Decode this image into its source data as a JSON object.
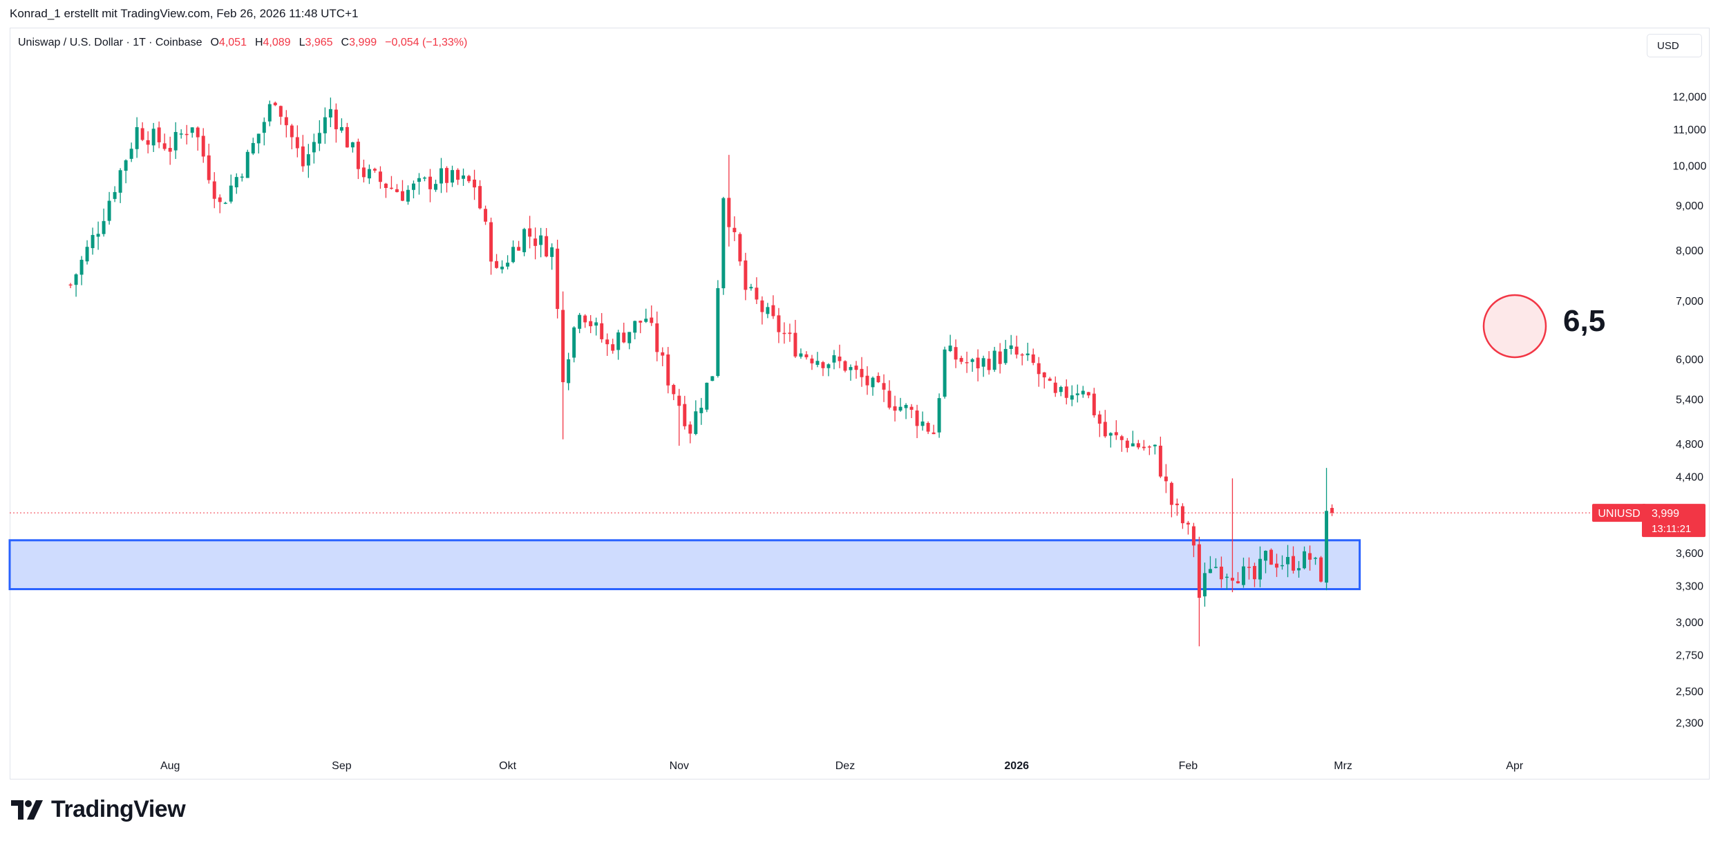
{
  "credit": "Konrad_1 erstellt mit TradingView.com, Feb 26, 2026 11:48 UTC+1",
  "legend": {
    "symbol": "Uniswap / U.S. Dollar · 1T · Coinbase",
    "o_label": "O",
    "o_value": "4,051",
    "h_label": "H",
    "h_value": "4,089",
    "l_label": "L",
    "l_value": "3,965",
    "c_label": "C",
    "c_value": "3,999",
    "change": "−0,054 (−1,33%)"
  },
  "currency_button": "USD",
  "annotation": {
    "value": "6,5",
    "circle_fill": "#fde8e9",
    "circle_stroke": "#f23645"
  },
  "price_label": {
    "ticker": "UNIUSD",
    "price": "3,999",
    "countdown": "13:11:21"
  },
  "brand": {
    "name": "TradingView"
  },
  "colors": {
    "up": "#089981",
    "down": "#f23645",
    "zone_fill": "#cfdcfe",
    "zone_stroke": "#2962ff"
  },
  "chart_data": {
    "type": "candlestick",
    "title": "Uniswap / U.S. Dollar · 1T · Coinbase",
    "scale": "log",
    "ylim": [
      2.16,
      13.25
    ],
    "y_ticks": [
      {
        "value": 12.0,
        "label": "12,000"
      },
      {
        "value": 11.0,
        "label": "11,000"
      },
      {
        "value": 10.0,
        "label": "10,000"
      },
      {
        "value": 9.0,
        "label": "9,000"
      },
      {
        "value": 8.0,
        "label": "8,000"
      },
      {
        "value": 7.0,
        "label": "7,000"
      },
      {
        "value": 6.0,
        "label": "6,000"
      },
      {
        "value": 5.4,
        "label": "5,400"
      },
      {
        "value": 4.8,
        "label": "4,800"
      },
      {
        "value": 4.4,
        "label": "4,400"
      },
      {
        "value": 3.6,
        "label": "3,600"
      },
      {
        "value": 3.3,
        "label": "3,300"
      },
      {
        "value": 3.0,
        "label": "3,000"
      },
      {
        "value": 2.75,
        "label": "2,750"
      },
      {
        "value": 2.5,
        "label": "2,500"
      },
      {
        "value": 2.3,
        "label": "2,300"
      }
    ],
    "x_ticks": [
      {
        "day": 18,
        "label": "Aug",
        "bold": false
      },
      {
        "day": 49,
        "label": "Sep",
        "bold": false
      },
      {
        "day": 79,
        "label": "Okt",
        "bold": false
      },
      {
        "day": 110,
        "label": "Nov",
        "bold": false
      },
      {
        "day": 140,
        "label": "Dez",
        "bold": false
      },
      {
        "day": 171,
        "label": "2026",
        "bold": true
      },
      {
        "day": 202,
        "label": "Feb",
        "bold": false
      },
      {
        "day": 230,
        "label": "Mrz",
        "bold": false
      },
      {
        "day": 261,
        "label": "Apr",
        "bold": false
      }
    ],
    "x_range": [
      -11,
      294
    ],
    "current_price": 3.999,
    "support_zone": {
      "from_day": -11,
      "to_day": 233,
      "low": 3.27,
      "high": 3.72
    },
    "control_points": [
      [
        0,
        7.3
      ],
      [
        5,
        8.5
      ],
      [
        12,
        11.0
      ],
      [
        18,
        10.5
      ],
      [
        22,
        11.2
      ],
      [
        27,
        9.0
      ],
      [
        32,
        10.2
      ],
      [
        37,
        12.0
      ],
      [
        42,
        10.0
      ],
      [
        47,
        11.6
      ],
      [
        53,
        9.8
      ],
      [
        60,
        9.3
      ],
      [
        67,
        9.7
      ],
      [
        73,
        9.5
      ],
      [
        77,
        7.5
      ],
      [
        82,
        8.4
      ],
      [
        87,
        8.0
      ],
      [
        89,
        5.8
      ],
      [
        92,
        6.9
      ],
      [
        97,
        6.2
      ],
      [
        104,
        6.7
      ],
      [
        108,
        5.7
      ],
      [
        112,
        5.0
      ],
      [
        116,
        5.8
      ],
      [
        118,
        9.3
      ],
      [
        122,
        7.2
      ],
      [
        127,
        6.6
      ],
      [
        132,
        6.1
      ],
      [
        140,
        5.9
      ],
      [
        146,
        5.5
      ],
      [
        152,
        5.2
      ],
      [
        156,
        4.95
      ],
      [
        158,
        6.1
      ],
      [
        163,
        5.9
      ],
      [
        170,
        6.1
      ],
      [
        174,
        5.9
      ],
      [
        178,
        5.4
      ],
      [
        183,
        5.6
      ],
      [
        187,
        4.9
      ],
      [
        192,
        4.8
      ],
      [
        196,
        4.7
      ],
      [
        199,
        4.1
      ],
      [
        201,
        3.9
      ],
      [
        203,
        3.7
      ],
      [
        204,
        3.2
      ],
      [
        206,
        3.5
      ],
      [
        208,
        3.45
      ],
      [
        212,
        3.4
      ],
      [
        214,
        3.35
      ],
      [
        216,
        3.55
      ],
      [
        220,
        3.5
      ],
      [
        224,
        3.55
      ],
      [
        226,
        3.4
      ],
      [
        227,
        3.95
      ],
      [
        228,
        3.999
      ]
    ]
  }
}
